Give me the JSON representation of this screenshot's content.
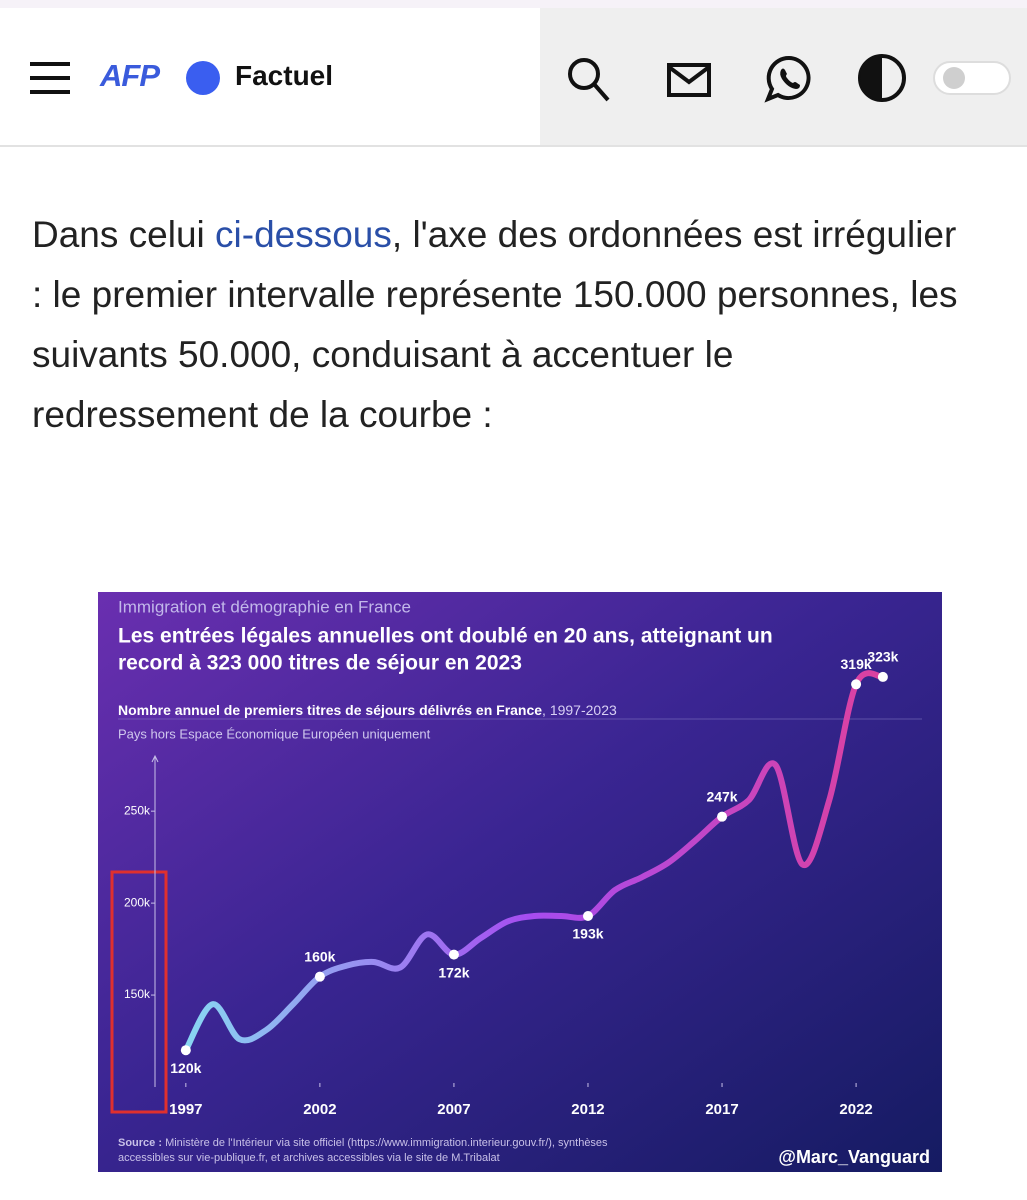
{
  "header": {
    "logo": "AFP",
    "section": "Factuel"
  },
  "article": {
    "before": "Dans celui ",
    "link": "ci-dessous",
    "after": ", l'axe des ordonnées est irrégulier : le premier intervalle représente 150.000 personnes, les suivants 50.000, conduisant à accentuer le redressement de la courbe :"
  },
  "chart_data": {
    "type": "line",
    "supertitle": "Immigration et démographie en France",
    "title": [
      "Les entrées légales annuelles ont doublé en 20 ans, atteignant un",
      "record à 323 000 titres de séjour en 2023"
    ],
    "subtitle": {
      "main": "Nombre annuel de premiers titres de séjours délivrés en France",
      "period": ", 1997-2023"
    },
    "note": "Pays hors Espace Économique Européen uniquement",
    "source": {
      "label": "Source :",
      "lines": [
        "Ministère de l'Intérieur via site officiel (https://www.immigration.interieur.gouv.fr/), synthèses",
        "accessibles sur vie-publique.fr, et archives accessibles via le site de M.Tribalat"
      ]
    },
    "credit": "@Marc_Vanguard",
    "x": [
      1997,
      1998,
      1999,
      2000,
      2001,
      2002,
      2003,
      2004,
      2005,
      2006,
      2007,
      2008,
      2009,
      2010,
      2011,
      2012,
      2013,
      2014,
      2015,
      2016,
      2017,
      2018,
      2019,
      2020,
      2021,
      2022,
      2023
    ],
    "values": [
      120000,
      145000,
      126000,
      131000,
      145000,
      160000,
      166000,
      168000,
      165000,
      183000,
      172000,
      181000,
      190000,
      193000,
      193000,
      193000,
      207000,
      214000,
      222000,
      234000,
      247000,
      256000,
      275000,
      221000,
      256000,
      319000,
      323000
    ],
    "value_labels": [
      "120k",
      null,
      null,
      null,
      null,
      "160k",
      null,
      null,
      null,
      null,
      "172k",
      null,
      null,
      null,
      null,
      "193k",
      null,
      null,
      null,
      null,
      "247k",
      null,
      null,
      null,
      null,
      "319k",
      "323k"
    ],
    "colors": [
      "#86e3f2",
      "#a64cf0",
      "#e0409a"
    ],
    "xlim": [
      1995.85,
      2023.75
    ],
    "xticks": [
      1997,
      2002,
      2007,
      2012,
      2017,
      2022
    ],
    "ylim": [
      100000,
      280000
    ],
    "yticks": [
      {
        "value": 150000,
        "label": "150k"
      },
      {
        "value": 200000,
        "label": "200k"
      },
      {
        "value": 250000,
        "label": "250k"
      }
    ]
  }
}
